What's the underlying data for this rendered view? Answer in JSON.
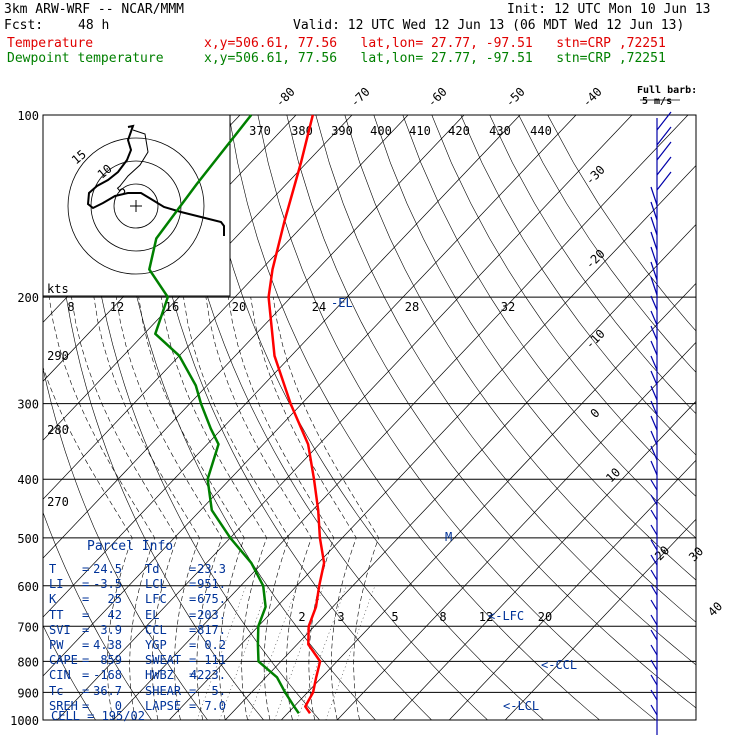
{
  "header": {
    "model": "3km ARW-WRF -- NCAR/MMM",
    "init": "Init: 12 UTC Mon 10 Jun 13",
    "fcst_label": "Fcst:",
    "fcst_value": "48 h",
    "valid": "Valid: 12 UTC Wed 12 Jun 13 (06 MDT Wed 12 Jun 13)",
    "temp_legend": "Temperature",
    "dew_legend": "Dewpoint temperature",
    "temp_info": "x,y=506.61, 77.56   lat,lon= 27.77, -97.51   stn=CRP ,72251",
    "dew_info": "x,y=506.61, 77.56   lat,lon= 27.77, -97.51   stn=CRP ,72251"
  },
  "chart_data": {
    "type": "line",
    "pressure_levels": [
      100,
      200,
      300,
      400,
      500,
      600,
      700,
      800,
      900,
      1000
    ],
    "series": [
      {
        "name": "Temperature",
        "color": "#ff0000",
        "points": [
          [
            100,
            -77
          ],
          [
            120,
            -71
          ],
          [
            150,
            -64
          ],
          [
            180,
            -58
          ],
          [
            200,
            -54
          ],
          [
            250,
            -43
          ],
          [
            300,
            -32
          ],
          [
            350,
            -22
          ],
          [
            400,
            -15
          ],
          [
            450,
            -9
          ],
          [
            500,
            -4
          ],
          [
            550,
            1
          ],
          [
            600,
            4
          ],
          [
            650,
            7
          ],
          [
            700,
            9
          ],
          [
            750,
            12
          ],
          [
            800,
            17
          ],
          [
            850,
            19
          ],
          [
            900,
            21
          ],
          [
            950,
            22
          ],
          [
            975,
            24
          ]
        ]
      },
      {
        "name": "Dewpoint temperature",
        "color": "#008000",
        "points": [
          [
            100,
            -88
          ],
          [
            130,
            -86
          ],
          [
            160,
            -84
          ],
          [
            180,
            -80
          ],
          [
            200,
            -72
          ],
          [
            230,
            -68
          ],
          [
            250,
            -60
          ],
          [
            280,
            -52
          ],
          [
            300,
            -48
          ],
          [
            330,
            -42
          ],
          [
            350,
            -38
          ],
          [
            400,
            -34
          ],
          [
            450,
            -28
          ],
          [
            500,
            -20
          ],
          [
            550,
            -12
          ],
          [
            600,
            -6
          ],
          [
            650,
            -2
          ],
          [
            700,
            0
          ],
          [
            750,
            3
          ],
          [
            800,
            6
          ],
          [
            850,
            12
          ],
          [
            900,
            16
          ],
          [
            950,
            20
          ],
          [
            975,
            22
          ]
        ]
      }
    ],
    "pressure_labels": [
      "100",
      "200",
      "300",
      "400",
      "500",
      "600",
      "700",
      "800",
      "900",
      "1000"
    ],
    "temp_top_labels": [
      "-80",
      "-70",
      "-60",
      "-50",
      "-40"
    ],
    "temp_right_labels": [
      "-30",
      "-20",
      "-10",
      "0",
      "10",
      "20",
      "30",
      "40"
    ],
    "theta_labels_top": [
      "370",
      "380",
      "390",
      "400",
      "410",
      "420",
      "430",
      "440"
    ],
    "theta_labels_left": [
      "290",
      "280",
      "270"
    ],
    "mixing_ratio_labels": [
      "2",
      "3",
      "5",
      "8",
      "12",
      "20"
    ],
    "hodo_speed_labels": [
      "8",
      "12",
      "16",
      "20",
      "24",
      "28",
      "32"
    ],
    "hodo_kts": "kts",
    "hodo_ring_labels": [
      "15",
      "10",
      "5"
    ],
    "level_labels": {
      "el": "-EL",
      "lfc": "<-LFC",
      "ccl": "<-CCL",
      "lcl": "<-LCL",
      "melt": "M"
    },
    "wind_key": {
      "title": "Full barb:",
      "value": "5 m/s"
    }
  },
  "parcel": {
    "title": "Parcel Info",
    "rows": [
      [
        "T",
        "24.5",
        "Td",
        "23.3"
      ],
      [
        "LI",
        "-3.5",
        "LCL",
        "951."
      ],
      [
        "K",
        "25",
        "LFC",
        "675."
      ],
      [
        "TT",
        "42",
        "EL",
        "203."
      ],
      [
        "SVI",
        "3.9",
        "CCL",
        "817."
      ],
      [
        "PW",
        "4.38",
        "YGP",
        "0.2"
      ],
      [
        "CAPE",
        "859",
        "SWEAT",
        "111"
      ],
      [
        "CIN",
        "-168",
        "HWBZ",
        "4223."
      ],
      [
        "Tc",
        "36.7",
        "SHEAR",
        "5."
      ],
      [
        "SREH",
        "0",
        "LAPSE",
        "7.0"
      ]
    ],
    "cell": "CELL = 195/02"
  },
  "colors": {
    "temperature": "#ff0000",
    "dewpoint": "#008000",
    "barbs": "#0000aa",
    "parcel_text": "#003399"
  }
}
